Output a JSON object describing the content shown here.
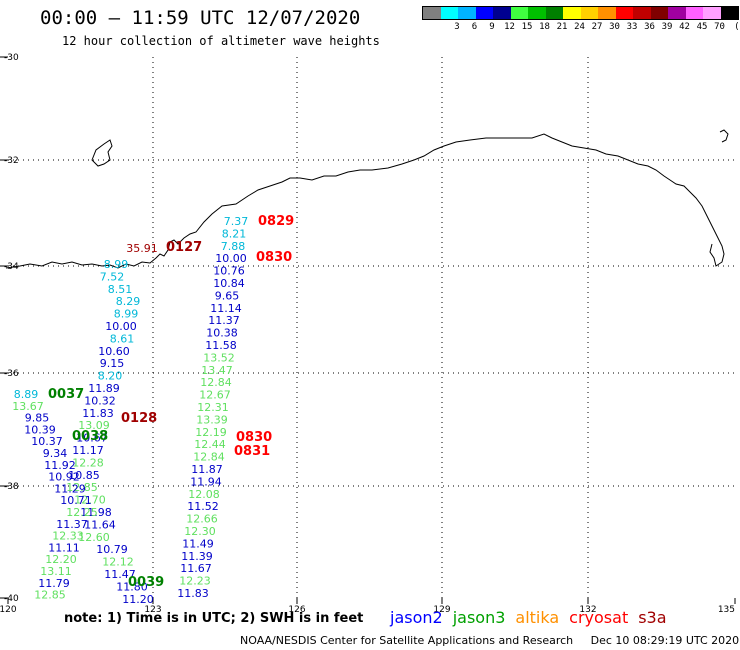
{
  "header": {
    "title": "00:00 – 11:59 UTC 12/07/2020",
    "subtitle": "12 hour collection of altimeter wave heights"
  },
  "legend": {
    "unit": "(ft)",
    "bins": [
      {
        "color": "#808080",
        "label": ""
      },
      {
        "color": "#00ffff",
        "label": "3"
      },
      {
        "color": "#00b4ff",
        "label": "6"
      },
      {
        "color": "#0000ff",
        "label": "9"
      },
      {
        "color": "#000090",
        "label": "12"
      },
      {
        "color": "#40ff40",
        "label": "15"
      },
      {
        "color": "#00c000",
        "label": "18"
      },
      {
        "color": "#008000",
        "label": "21"
      },
      {
        "color": "#ffff00",
        "label": "24"
      },
      {
        "color": "#ffd000",
        "label": "27"
      },
      {
        "color": "#ff9000",
        "label": "30"
      },
      {
        "color": "#ff0000",
        "label": "33"
      },
      {
        "color": "#c00000",
        "label": "36"
      },
      {
        "color": "#800000",
        "label": "39"
      },
      {
        "color": "#a000a0",
        "label": "42"
      },
      {
        "color": "#ff60ff",
        "label": "45"
      },
      {
        "color": "#ffa0ff",
        "label": "70"
      },
      {
        "color": "#000000",
        "label": ""
      }
    ]
  },
  "axes": {
    "lat_labels": [
      "-30",
      "-32",
      "-34",
      "-36",
      "-38",
      "-40"
    ],
    "lon_labels": [
      "120",
      "123",
      "126",
      "129",
      "132",
      "135"
    ]
  },
  "colors": {
    "cyan": "#00b8d8",
    "blue": "#0000c8",
    "navy": "#000090",
    "green": "#60e060",
    "dkgreen": "#008000",
    "red": "#ff0000",
    "darkred": "#a00000"
  },
  "tracks": {
    "east": [
      {
        "v": "7.37",
        "c": "cyan"
      },
      {
        "v": "8.21",
        "c": "cyan"
      },
      {
        "v": "7.88",
        "c": "cyan"
      },
      {
        "v": "10.00",
        "c": "blue"
      },
      {
        "v": "10.76",
        "c": "blue"
      },
      {
        "v": "10.84",
        "c": "blue"
      },
      {
        "v": "9.65",
        "c": "blue"
      },
      {
        "v": "11.14",
        "c": "blue"
      },
      {
        "v": "11.37",
        "c": "blue"
      },
      {
        "v": "10.38",
        "c": "blue"
      },
      {
        "v": "11.58",
        "c": "blue"
      },
      {
        "v": "13.52",
        "c": "green"
      },
      {
        "v": "13.47",
        "c": "green"
      },
      {
        "v": "12.84",
        "c": "green"
      },
      {
        "v": "12.67",
        "c": "green"
      },
      {
        "v": "12.31",
        "c": "green"
      },
      {
        "v": "13.39",
        "c": "green"
      },
      {
        "v": "12.19",
        "c": "green"
      },
      {
        "v": "12.44",
        "c": "green"
      },
      {
        "v": "12.84",
        "c": "green"
      },
      {
        "v": "11.87",
        "c": "blue"
      },
      {
        "v": "11.94",
        "c": "blue"
      },
      {
        "v": "12.08",
        "c": "green"
      },
      {
        "v": "11.52",
        "c": "blue"
      },
      {
        "v": "12.66",
        "c": "green"
      },
      {
        "v": "12.30",
        "c": "green"
      },
      {
        "v": "11.49",
        "c": "blue"
      },
      {
        "v": "11.39",
        "c": "blue"
      },
      {
        "v": "11.67",
        "c": "blue"
      },
      {
        "v": "12.23",
        "c": "green"
      },
      {
        "v": "11.83",
        "c": "blue"
      }
    ],
    "middle": [
      {
        "v": "8.99",
        "c": "cyan"
      },
      {
        "v": "7.52",
        "c": "cyan"
      },
      {
        "v": "8.51",
        "c": "cyan"
      },
      {
        "v": "8.29",
        "c": "cyan"
      },
      {
        "v": "8.99",
        "c": "cyan"
      },
      {
        "v": "10.00",
        "c": "blue"
      },
      {
        "v": "8.61",
        "c": "cyan"
      },
      {
        "v": "10.60",
        "c": "blue"
      },
      {
        "v": "9.15",
        "c": "blue"
      },
      {
        "v": "8.20",
        "c": "cyan"
      },
      {
        "v": "11.89",
        "c": "blue"
      },
      {
        "v": "10.32",
        "c": "blue"
      },
      {
        "v": "11.83",
        "c": "blue"
      },
      {
        "v": "13.09",
        "c": "green"
      },
      {
        "v": "10.67",
        "c": "blue"
      },
      {
        "v": "11.17",
        "c": "blue"
      },
      {
        "v": "12.28",
        "c": "green"
      },
      {
        "v": "10.85",
        "c": "blue"
      },
      {
        "v": "12.85",
        "c": "green"
      },
      {
        "v": "12.70",
        "c": "green"
      },
      {
        "v": "11.98",
        "c": "blue"
      },
      {
        "v": "11.64",
        "c": "blue"
      },
      {
        "v": "12.60",
        "c": "green"
      },
      {
        "v": "10.79",
        "c": "blue"
      },
      {
        "v": "12.12",
        "c": "green"
      },
      {
        "v": "11.47",
        "c": "blue"
      },
      {
        "v": "11.80",
        "c": "blue"
      },
      {
        "v": "11.20",
        "c": "blue"
      }
    ],
    "west": [
      {
        "v": "8.89",
        "c": "cyan"
      },
      {
        "v": "13.67",
        "c": "green"
      },
      {
        "v": "9.85",
        "c": "blue"
      },
      {
        "v": "10.39",
        "c": "blue"
      },
      {
        "v": "10.37",
        "c": "blue"
      },
      {
        "v": "9.34",
        "c": "blue"
      },
      {
        "v": "11.92",
        "c": "blue"
      },
      {
        "v": "10.92",
        "c": "blue"
      },
      {
        "v": "11.29",
        "c": "blue"
      },
      {
        "v": "10.71",
        "c": "blue"
      },
      {
        "v": "12.25",
        "c": "green"
      },
      {
        "v": "11.37",
        "c": "blue"
      },
      {
        "v": "12.33",
        "c": "green"
      },
      {
        "v": "11.11",
        "c": "blue"
      },
      {
        "v": "12.20",
        "c": "green"
      },
      {
        "v": "13.11",
        "c": "green"
      },
      {
        "v": "11.79",
        "c": "blue"
      },
      {
        "v": "12.85",
        "c": "green"
      }
    ]
  },
  "extra_values": [
    {
      "v": "35.91",
      "c": "darkred"
    }
  ],
  "time_labels": [
    {
      "v": "0829",
      "c": "red"
    },
    {
      "v": "0830",
      "c": "red"
    },
    {
      "v": "0127",
      "c": "darkred"
    },
    {
      "v": "0037",
      "c": "dkgreen"
    },
    {
      "v": "0128",
      "c": "darkred"
    },
    {
      "v": "0038",
      "c": "dkgreen"
    },
    {
      "v": "0830",
      "c": "red"
    },
    {
      "v": "0831",
      "c": "red"
    },
    {
      "v": "0039",
      "c": "dkgreen"
    }
  ],
  "footer": {
    "note": "note: 1) Time is in UTC; 2) SWH is in feet",
    "satellites": [
      {
        "name": "jason2",
        "color": "#0000ff"
      },
      {
        "name": "jason3",
        "color": "#00a000"
      },
      {
        "name": "altika",
        "color": "#ff9000"
      },
      {
        "name": "cryosat",
        "color": "#ff0000"
      },
      {
        "name": "s3a",
        "color": "#a00000"
      }
    ],
    "credit": "NOAA/NESDIS Center for Satellite Applications and Research",
    "timestamp": "Dec 10 08:29:19 UTC 2020"
  }
}
